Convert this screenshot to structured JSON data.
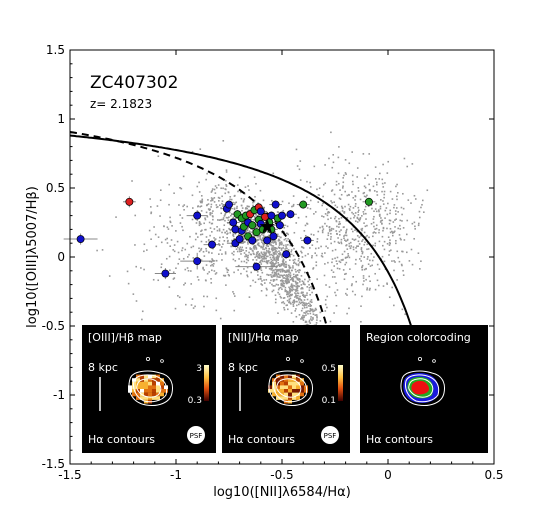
{
  "chart_data": {
    "type": "scatter",
    "galaxy_name": "ZC407302",
    "redshift_label": "z= 2.1823",
    "xlabel": "log10([NII]λ6584/Hα)",
    "ylabel": "log10([OIII]λ5007/Hβ)",
    "xlim": [
      -1.5,
      0.5
    ],
    "ylim": [
      -1.5,
      1.5
    ],
    "xticks": [
      "-1.5",
      "-1",
      "-0.5",
      "0",
      "0.5"
    ],
    "yticks": [
      "-1.5",
      "-1",
      "-0.5",
      "0",
      "0.5",
      "1",
      "1.5"
    ],
    "tick_values_x": [
      -1.5,
      -1,
      -0.5,
      0,
      0.5
    ],
    "tick_values_y": [
      -1.5,
      -1,
      -0.5,
      0,
      0.5,
      1,
      1.5
    ],
    "curves": [
      {
        "style": "solid",
        "fn": "kewley",
        "points": [
          [
            -1.5,
            0.883
          ],
          [
            -1.0,
            0.738
          ],
          [
            -0.5,
            0.408
          ],
          [
            -0.2,
            -0.03
          ],
          [
            0.0,
            -0.539
          ],
          [
            0.1,
            -0.928
          ],
          [
            0.2,
            -1.5
          ]
        ]
      },
      {
        "style": "dashed",
        "fn": "kauffmann",
        "points": [
          [
            -1.5,
            0.91
          ],
          [
            -1.0,
            0.666
          ],
          [
            -0.7,
            0.317
          ],
          [
            -0.5,
            -0.103
          ],
          [
            -0.4,
            -0.533
          ],
          [
            -0.3,
            -1.341
          ]
        ]
      }
    ],
    "background_color": "#999999",
    "points": [
      {
        "x": -1.45,
        "y": 0.13,
        "xerr": 0.08,
        "yerr": 0.04,
        "color": "#1010cc"
      },
      {
        "x": -1.22,
        "y": 0.4,
        "xerr": 0.03,
        "yerr": 0.04,
        "color": "#dd2020"
      },
      {
        "x": -1.05,
        "y": -0.12,
        "xerr": 0.05,
        "yerr": 0.04,
        "color": "#1010cc"
      },
      {
        "x": -0.9,
        "y": 0.3,
        "xerr": 0.05,
        "yerr": 0.04,
        "color": "#1010cc"
      },
      {
        "x": -0.9,
        "y": -0.03,
        "xerr": 0.08,
        "yerr": 0.06,
        "color": "#1010cc"
      },
      {
        "x": -0.83,
        "y": 0.09,
        "xerr": 0.04,
        "yerr": 0.03,
        "color": "#1010cc"
      },
      {
        "x": -0.76,
        "y": 0.35,
        "xerr": 0.03,
        "yerr": 0.03,
        "color": "#1010cc"
      },
      {
        "x": -0.75,
        "y": 0.38,
        "xerr": 0.03,
        "yerr": 0.03,
        "color": "#1010cc"
      },
      {
        "x": -0.73,
        "y": 0.25,
        "xerr": 0.03,
        "yerr": 0.03,
        "color": "#1010cc"
      },
      {
        "x": -0.72,
        "y": 0.2,
        "xerr": 0.03,
        "yerr": 0.03,
        "color": "#1010cc"
      },
      {
        "x": -0.72,
        "y": 0.1,
        "xerr": 0.04,
        "yerr": 0.03,
        "color": "#1010cc"
      },
      {
        "x": -0.71,
        "y": 0.31,
        "xerr": 0.03,
        "yerr": 0.03,
        "color": "#229922"
      },
      {
        "x": -0.7,
        "y": 0.13,
        "xerr": 0.03,
        "yerr": 0.03,
        "color": "#1010cc"
      },
      {
        "x": -0.69,
        "y": 0.28,
        "xerr": 0.03,
        "yerr": 0.03,
        "color": "#229922"
      },
      {
        "x": -0.69,
        "y": 0.19,
        "xerr": 0.03,
        "yerr": 0.03,
        "color": "#1010cc"
      },
      {
        "x": -0.68,
        "y": 0.22,
        "xerr": 0.03,
        "yerr": 0.03,
        "color": "#229922"
      },
      {
        "x": -0.67,
        "y": 0.3,
        "xerr": 0.03,
        "yerr": 0.03,
        "color": "#229922"
      },
      {
        "x": -0.66,
        "y": 0.25,
        "xerr": 0.03,
        "yerr": 0.03,
        "color": "#1010cc"
      },
      {
        "x": -0.66,
        "y": 0.15,
        "xerr": 0.03,
        "yerr": 0.03,
        "color": "#229922"
      },
      {
        "x": -0.65,
        "y": 0.31,
        "xerr": 0.03,
        "yerr": 0.03,
        "color": "#dd2020"
      },
      {
        "x": -0.64,
        "y": 0.23,
        "xerr": 0.03,
        "yerr": 0.03,
        "color": "#229922"
      },
      {
        "x": -0.64,
        "y": 0.12,
        "xerr": 0.03,
        "yerr": 0.03,
        "color": "#1010cc"
      },
      {
        "x": -0.63,
        "y": 0.34,
        "xerr": 0.03,
        "yerr": 0.03,
        "color": "#229922"
      },
      {
        "x": -0.62,
        "y": 0.18,
        "xerr": 0.03,
        "yerr": 0.03,
        "color": "#229922"
      },
      {
        "x": -0.62,
        "y": -0.07,
        "xerr": 0.1,
        "yerr": 0.03,
        "color": "#1010cc"
      },
      {
        "x": -0.61,
        "y": 0.36,
        "xerr": 0.03,
        "yerr": 0.03,
        "color": "#dd2020"
      },
      {
        "x": -0.61,
        "y": 0.27,
        "xerr": 0.03,
        "yerr": 0.03,
        "color": "#229922"
      },
      {
        "x": -0.6,
        "y": 0.24,
        "xerr": 0.03,
        "yerr": 0.03,
        "color": "#1010cc"
      },
      {
        "x": -0.6,
        "y": 0.33,
        "xerr": 0.03,
        "yerr": 0.03,
        "color": "#1010cc"
      },
      {
        "x": -0.59,
        "y": 0.2,
        "xerr": 0.03,
        "yerr": 0.03,
        "color": "#229922"
      },
      {
        "x": -0.58,
        "y": 0.29,
        "xerr": 0.03,
        "yerr": 0.03,
        "color": "#dd2020"
      },
      {
        "x": -0.57,
        "y": 0.12,
        "xerr": 0.03,
        "yerr": 0.03,
        "color": "#1010cc"
      },
      {
        "x": -0.56,
        "y": 0.25,
        "xerr": 0.03,
        "yerr": 0.03,
        "color": "#229922"
      },
      {
        "x": -0.55,
        "y": 0.3,
        "xerr": 0.03,
        "yerr": 0.03,
        "color": "#1010cc"
      },
      {
        "x": -0.55,
        "y": 0.2,
        "xerr": 0.03,
        "yerr": 0.03,
        "color": "#229922"
      },
      {
        "x": -0.54,
        "y": 0.15,
        "xerr": 0.03,
        "yerr": 0.03,
        "color": "#1010cc"
      },
      {
        "x": -0.53,
        "y": 0.38,
        "xerr": 0.03,
        "yerr": 0.03,
        "color": "#1010cc"
      },
      {
        "x": -0.52,
        "y": 0.28,
        "xerr": 0.03,
        "yerr": 0.03,
        "color": "#229922"
      },
      {
        "x": -0.51,
        "y": 0.23,
        "xerr": 0.03,
        "yerr": 0.03,
        "color": "#1010cc"
      },
      {
        "x": -0.5,
        "y": 0.3,
        "xerr": 0.03,
        "yerr": 0.03,
        "color": "#1010cc"
      },
      {
        "x": -0.48,
        "y": 0.02,
        "xerr": 0.03,
        "yerr": 0.03,
        "color": "#1010cc"
      },
      {
        "x": -0.46,
        "y": 0.31,
        "xerr": 0.03,
        "yerr": 0.03,
        "color": "#1010cc"
      },
      {
        "x": -0.4,
        "y": 0.38,
        "xerr": 0.03,
        "yerr": 0.03,
        "color": "#229922"
      },
      {
        "x": -0.38,
        "y": 0.12,
        "xerr": 0.03,
        "yerr": 0.03,
        "color": "#1010cc"
      },
      {
        "x": -0.09,
        "y": 0.4,
        "xerr": 0.03,
        "yerr": 0.03,
        "color": "#229922"
      }
    ],
    "star": {
      "x": -0.57,
      "y": 0.22
    }
  },
  "insets": [
    {
      "title_parts": [
        "[OIII]/H",
        "β",
        " map"
      ],
      "scale_label": "8 kpc",
      "cbar_max": "3",
      "cbar_min": "0.3",
      "contour_label": "Hα contours",
      "psf_label": "PSF",
      "kind": "oiii"
    },
    {
      "title_parts": [
        "[NII]/H",
        "α",
        " map"
      ],
      "scale_label": "8 kpc",
      "cbar_max": "0.5",
      "cbar_min": "0.1",
      "contour_label": "Hα contours",
      "psf_label": "PSF",
      "kind": "nii"
    },
    {
      "title_parts": [
        "Region colorcoding",
        "",
        ""
      ],
      "scale_label": "",
      "cbar_max": "",
      "cbar_min": "",
      "contour_label": "Hα contours",
      "psf_label": "",
      "kind": "region"
    }
  ]
}
